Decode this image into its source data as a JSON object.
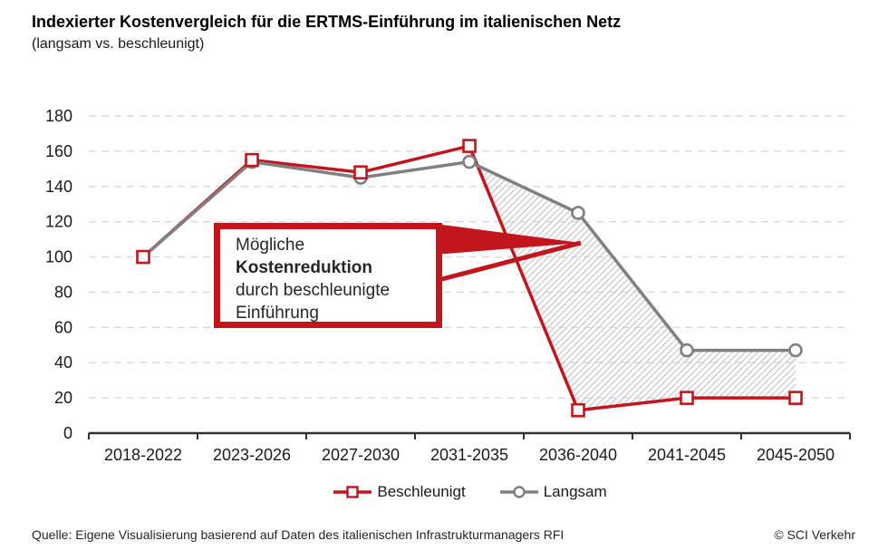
{
  "title": "Indexierter Kostenvergleich für die ERTMS-Einführung im italienischen Netz",
  "subtitle": "(langsam vs. beschleunigt)",
  "footer": {
    "source": "Quelle: Eigene Visualisierung basierend auf Daten des italienischen Infrastrukturmanagers RFI",
    "copyright": "© SCI Verkehr"
  },
  "annotation": {
    "lines": [
      {
        "text": "Mögliche",
        "bold": false
      },
      {
        "text": "Kostenreduktion",
        "bold": true
      },
      {
        "text": "durch beschleunigte",
        "bold": false
      },
      {
        "text": "Einführung",
        "bold": false
      }
    ],
    "points_to": "Lücke zwischen Langsam und Beschleunigt ab 2031-2035"
  },
  "colors": {
    "accelerated": "#c3161c",
    "slow": "#808080",
    "grid": "#d9d9d9",
    "hatch": "#c8c8c8",
    "axis": "#333333",
    "text": "#1a1a1a"
  },
  "chart_data": {
    "type": "line",
    "title": "Indexierter Kostenvergleich für die ERTMS-Einführung im italienischen Netz (langsam vs. beschleunigt)",
    "categories": [
      "2018-2022",
      "2023-2026",
      "2027-2030",
      "2031-2035",
      "2036-2040",
      "2041-2045",
      "2045-2050"
    ],
    "series": [
      {
        "name": "Beschleunigt",
        "marker": "square",
        "color": "#c3161c",
        "values": [
          100,
          155,
          148,
          163,
          13,
          20,
          20
        ]
      },
      {
        "name": "Langsam",
        "marker": "circle",
        "color": "#808080",
        "values": [
          100,
          154,
          145,
          154,
          125,
          47,
          47
        ]
      }
    ],
    "ylim": [
      0,
      180
    ],
    "yticks": [
      0,
      20,
      40,
      60,
      80,
      100,
      120,
      140,
      160,
      180
    ],
    "grid": "horizontal-dashed",
    "legend_position": "bottom-center",
    "hatched_region": {
      "between_series": [
        "Langsam",
        "Beschleunigt"
      ],
      "from_category": "2031-2035",
      "to_category": "2045-2050"
    }
  }
}
